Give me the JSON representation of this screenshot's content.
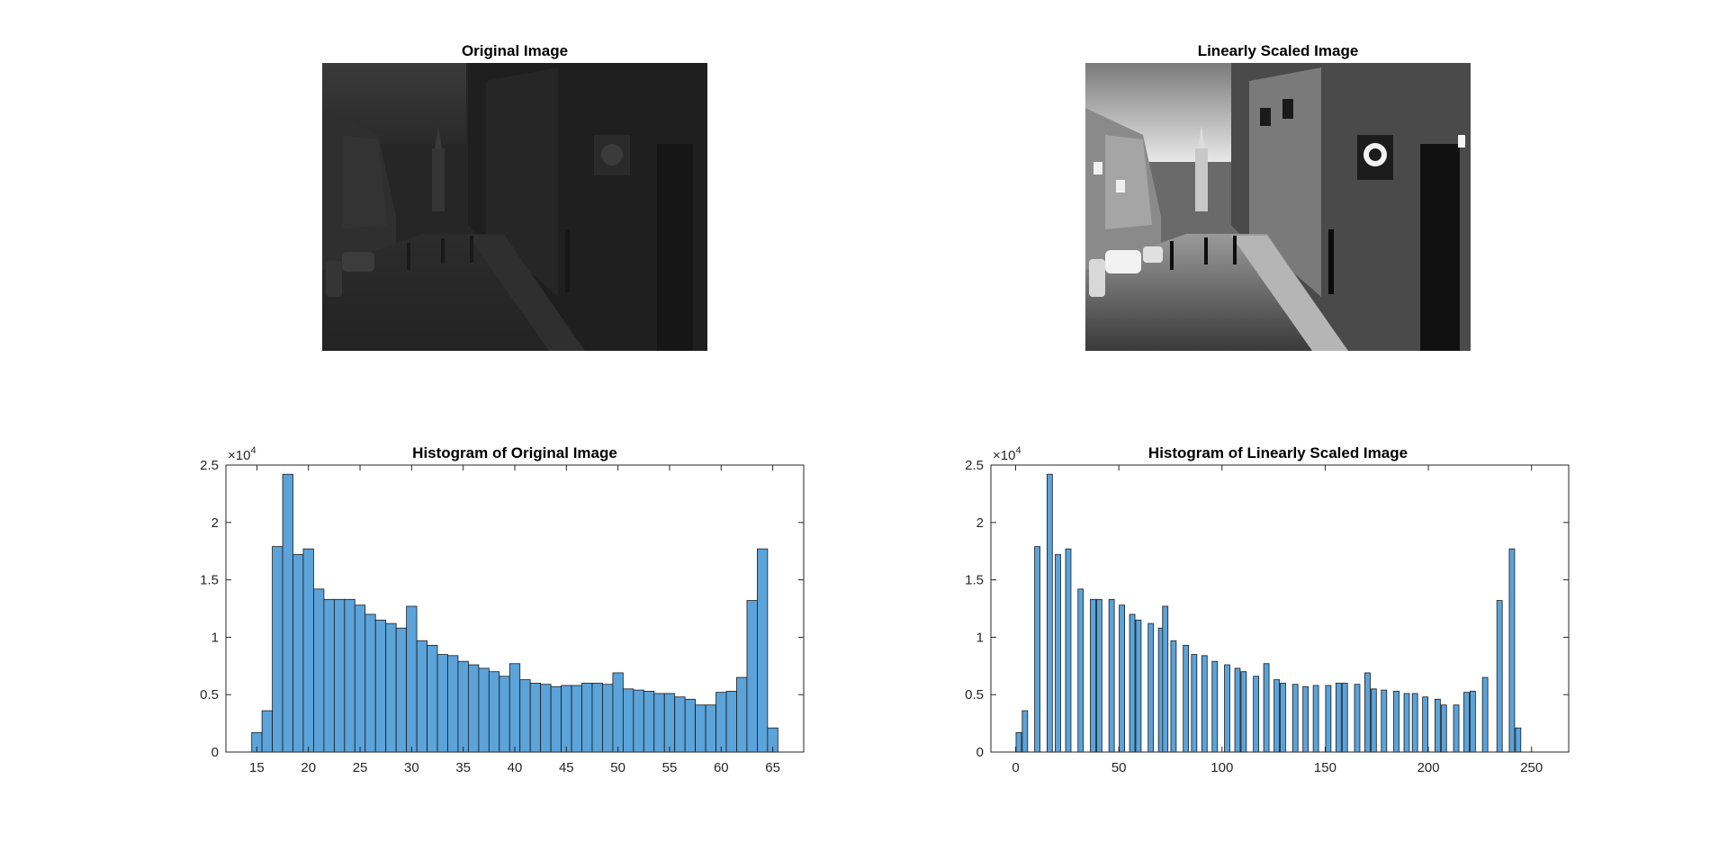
{
  "figure": {
    "colors": {
      "bar_fill": "#5BA3D9",
      "bar_edge": "#1a1a1a",
      "axes": "#262626",
      "background": "#ffffff"
    }
  },
  "images": [
    {
      "title": "Original Image",
      "description": "Low-contrast grayscale street scene (cobblestone street, buildings, pedestrians, cars); intensities 15–65",
      "tone": "dark"
    },
    {
      "title": "Linearly Scaled Image",
      "description": "Same grayscale street scene after linear contrast stretch to 0–255",
      "tone": "full"
    }
  ],
  "chart_data": [
    {
      "type": "bar",
      "title": "Histogram of Original Image",
      "xlabel": "",
      "ylabel": "",
      "xlim": [
        12,
        68
      ],
      "ylim": [
        0,
        25000
      ],
      "y_exponent": "×10^4",
      "xticks": [
        15,
        20,
        25,
        30,
        35,
        40,
        45,
        50,
        55,
        60,
        65
      ],
      "yticks": [
        0,
        5000,
        10000,
        15000,
        20000,
        25000
      ],
      "ytick_labels": [
        "0",
        "0.5",
        "1",
        "1.5",
        "2",
        "2.5"
      ],
      "bar_width": 1,
      "x": [
        15,
        16,
        17,
        18,
        19,
        20,
        21,
        22,
        23,
        24,
        25,
        26,
        27,
        28,
        29,
        30,
        31,
        32,
        33,
        34,
        35,
        36,
        37,
        38,
        39,
        40,
        41,
        42,
        43,
        44,
        45,
        46,
        47,
        48,
        49,
        50,
        51,
        52,
        53,
        54,
        55,
        56,
        57,
        58,
        59,
        60,
        61,
        62,
        63,
        64,
        65
      ],
      "values": [
        1700,
        3600,
        17900,
        24200,
        17200,
        17700,
        14200,
        13300,
        13300,
        13300,
        12800,
        12000,
        11500,
        11200,
        10800,
        12700,
        9700,
        9300,
        8500,
        8400,
        7900,
        7600,
        7300,
        7000,
        6600,
        7700,
        6300,
        6000,
        5900,
        5700,
        5800,
        5800,
        6000,
        6000,
        5900,
        6900,
        5500,
        5400,
        5300,
        5100,
        5100,
        4800,
        4600,
        4100,
        4100,
        5200,
        5300,
        6500,
        13200,
        17700,
        2100
      ]
    },
    {
      "type": "bar",
      "title": "Histogram of Linearly Scaled Image",
      "xlabel": "",
      "ylabel": "",
      "xlim": [
        -12,
        268
      ],
      "ylim": [
        0,
        25000
      ],
      "y_exponent": "×10^4",
      "xticks": [
        0,
        50,
        100,
        150,
        200,
        250
      ],
      "yticks": [
        0,
        5000,
        10000,
        15000,
        20000,
        25000
      ],
      "ytick_labels": [
        "0",
        "0.5",
        "1",
        "1.5",
        "2",
        "2.5"
      ],
      "bar_width": 2.6,
      "x": [
        1.5,
        4.5,
        10.5,
        16.5,
        20.5,
        25.5,
        31.5,
        37.5,
        40.5,
        46.5,
        51.5,
        56.5,
        59.5,
        65.5,
        70.5,
        72.5,
        76.5,
        82.5,
        86.5,
        91.5,
        96.5,
        102.5,
        107.5,
        110.5,
        116.5,
        121.5,
        126.5,
        129.5,
        135.5,
        140.5,
        145.5,
        151.5,
        156.5,
        159.5,
        165.5,
        170.5,
        173.5,
        178.5,
        184.5,
        189.5,
        193.5,
        198.5,
        204.5,
        207.5,
        213.5,
        218.5,
        221.5,
        227.5,
        234.5,
        240.5,
        243.5,
        247.5,
        251.5,
        254.5
      ],
      "values": [
        1700,
        3600,
        17900,
        24200,
        17200,
        17700,
        14200,
        13300,
        13300,
        13300,
        12800,
        12000,
        11500,
        11200,
        10800,
        12700,
        9700,
        9300,
        8500,
        8400,
        7900,
        7600,
        7300,
        7000,
        6600,
        7700,
        6300,
        6000,
        5900,
        5700,
        5800,
        5800,
        6000,
        6000,
        5900,
        6900,
        5500,
        5400,
        5300,
        5100,
        5100,
        4800,
        4600,
        4100,
        4100,
        5200,
        5300,
        6500,
        13200,
        17700,
        2100,
        0,
        0,
        0
      ]
    }
  ]
}
